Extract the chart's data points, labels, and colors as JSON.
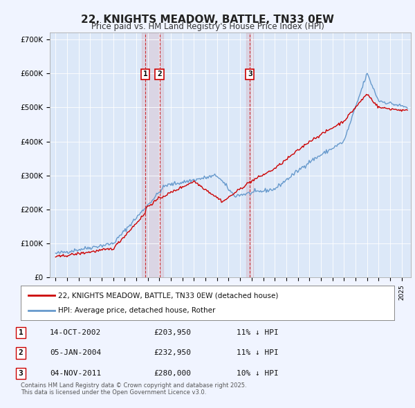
{
  "title": "22, KNIGHTS MEADOW, BATTLE, TN33 0EW",
  "subtitle": "Price paid vs. HM Land Registry's House Price Index (HPI)",
  "background_color": "#f0f4ff",
  "plot_bg_color": "#dce8f8",
  "legend_line1": "22, KNIGHTS MEADOW, BATTLE, TN33 0EW (detached house)",
  "legend_line2": "HPI: Average price, detached house, Rother",
  "red_color": "#cc0000",
  "blue_color": "#6699cc",
  "footnote": "Contains HM Land Registry data © Crown copyright and database right 2025.\nThis data is licensed under the Open Government Licence v3.0.",
  "transactions": [
    {
      "num": 1,
      "date": "14-OCT-2002",
      "price": 203950,
      "hpi_diff": "11% ↓ HPI"
    },
    {
      "num": 2,
      "date": "05-JAN-2004",
      "price": 232950,
      "hpi_diff": "11% ↓ HPI"
    },
    {
      "num": 3,
      "date": "04-NOV-2011",
      "price": 280000,
      "hpi_diff": "10% ↓ HPI"
    }
  ],
  "ylim": [
    0,
    720000
  ],
  "yticks": [
    0,
    100000,
    200000,
    300000,
    400000,
    500000,
    600000,
    700000
  ],
  "xlim_start": 1994.5,
  "xlim_end": 2025.8
}
